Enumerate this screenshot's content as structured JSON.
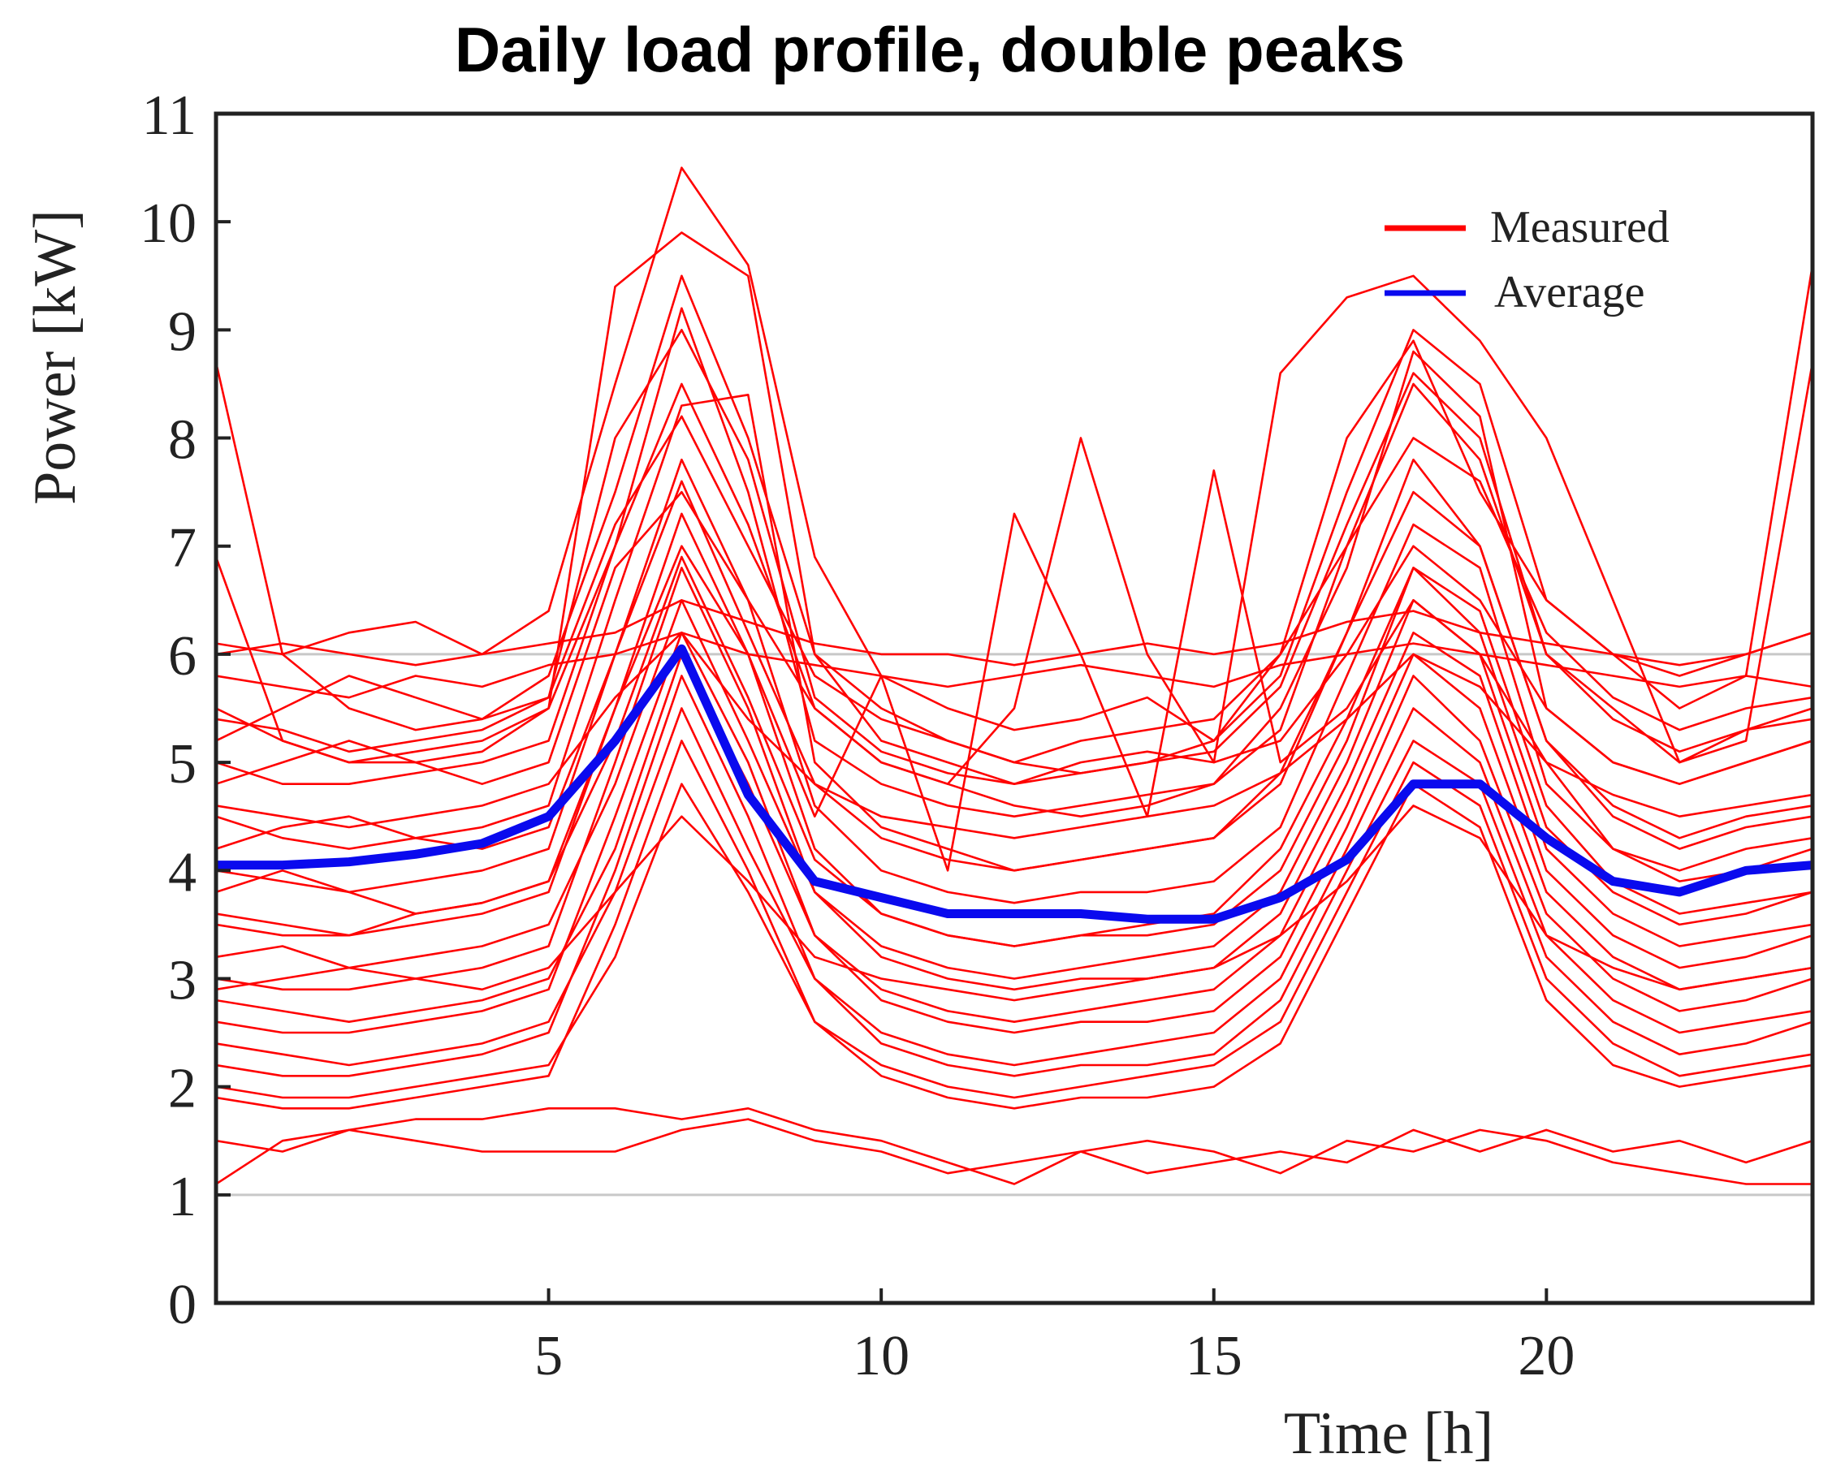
{
  "chart_data": {
    "type": "line",
    "title": "Daily load profile, double peaks",
    "xlabel": "Time [h]",
    "ylabel": "Power [kW]",
    "xlim": [
      0,
      24
    ],
    "ylim": [
      0,
      11
    ],
    "xticks": [
      5,
      10,
      15,
      20
    ],
    "yticks": [
      0,
      1,
      2,
      3,
      4,
      5,
      6,
      7,
      8,
      9,
      10,
      11
    ],
    "grid": false,
    "legend_position": "top-right",
    "colors": {
      "measured": "#ff0000",
      "average": "#0a0aee",
      "reference_lines": "#c8c8c8",
      "axes": "#222222"
    },
    "reference_lines_y": [
      1,
      6
    ],
    "x": [
      0,
      1,
      2,
      3,
      4,
      5,
      6,
      7,
      8,
      9,
      10,
      11,
      12,
      13,
      14,
      15,
      16,
      17,
      18,
      19,
      20,
      21,
      22,
      23,
      24
    ],
    "series": [
      {
        "name": "Average",
        "values": [
          4.05,
          4.05,
          4.08,
          4.15,
          4.25,
          4.5,
          5.2,
          6.05,
          4.7,
          3.9,
          3.75,
          3.6,
          3.6,
          3.6,
          3.55,
          3.55,
          3.75,
          4.1,
          4.8,
          4.8,
          4.3,
          3.9,
          3.8,
          4.0,
          4.05
        ]
      },
      {
        "name": "Measured",
        "profiles": [
          [
            8.7,
            6.0,
            5.5,
            5.3,
            5.4,
            5.8,
            7.5,
            9.5,
            8.0,
            6.0,
            5.5,
            5.2,
            5.0,
            4.9,
            5.0,
            5.2,
            5.8,
            7.5,
            9.0,
            8.5,
            6.5,
            6.0,
            5.5,
            5.8,
            9.6
          ],
          [
            6.9,
            5.2,
            5.0,
            5.0,
            5.1,
            5.5,
            7.0,
            8.5,
            7.2,
            5.5,
            5.0,
            4.8,
            4.6,
            4.5,
            4.6,
            4.8,
            5.3,
            7.0,
            8.5,
            7.8,
            6.0,
            5.5,
            5.0,
            5.2,
            8.7
          ],
          [
            6.1,
            6.0,
            6.2,
            6.3,
            6.0,
            6.4,
            8.5,
            10.5,
            9.6,
            6.9,
            5.8,
            5.5,
            5.3,
            5.4,
            5.6,
            5.2,
            6.0,
            8.0,
            8.9,
            7.5,
            6.5,
            6.0,
            5.8,
            6.0,
            6.2
          ],
          [
            5.5,
            5.2,
            5.0,
            5.1,
            5.2,
            5.5,
            9.4,
            9.9,
            9.5,
            6.0,
            5.2,
            5.0,
            4.8,
            5.0,
            5.1,
            5.0,
            8.6,
            9.3,
            9.5,
            8.9,
            8.0,
            6.5,
            5.0,
            5.3,
            5.5
          ],
          [
            5.0,
            4.8,
            4.8,
            4.9,
            5.0,
            5.2,
            7.0,
            9.2,
            7.5,
            5.2,
            4.8,
            4.6,
            4.5,
            4.6,
            4.7,
            4.8,
            5.5,
            6.8,
            8.8,
            8.2,
            5.5,
            5.0,
            4.8,
            5.0,
            5.2
          ],
          [
            4.5,
            4.3,
            4.2,
            4.3,
            4.4,
            4.6,
            6.5,
            8.3,
            8.4,
            5.0,
            4.4,
            4.2,
            4.0,
            4.1,
            4.2,
            4.3,
            4.8,
            6.2,
            7.8,
            7.0,
            5.2,
            4.6,
            4.3,
            4.5,
            4.6
          ],
          [
            4.0,
            3.9,
            3.8,
            3.9,
            4.0,
            4.2,
            6.0,
            7.8,
            6.5,
            4.6,
            4.0,
            3.8,
            3.7,
            3.8,
            3.8,
            3.9,
            4.4,
            5.8,
            7.2,
            6.8,
            4.8,
            4.2,
            3.9,
            4.0,
            4.2
          ],
          [
            3.5,
            3.4,
            3.4,
            3.5,
            3.6,
            3.8,
            5.5,
            7.3,
            6.0,
            4.2,
            3.6,
            3.4,
            3.3,
            3.4,
            3.4,
            3.5,
            4.0,
            5.2,
            6.8,
            6.2,
            4.4,
            3.8,
            3.5,
            3.6,
            3.8
          ],
          [
            3.0,
            2.9,
            2.9,
            3.0,
            3.1,
            3.3,
            5.0,
            6.8,
            5.5,
            3.8,
            3.2,
            3.0,
            2.9,
            3.0,
            3.0,
            3.1,
            3.6,
            4.8,
            6.2,
            5.8,
            4.0,
            3.4,
            3.1,
            3.2,
            3.4
          ],
          [
            2.6,
            2.5,
            2.5,
            2.6,
            2.7,
            2.9,
            4.5,
            6.2,
            5.0,
            3.4,
            2.8,
            2.6,
            2.5,
            2.6,
            2.6,
            2.7,
            3.2,
            4.4,
            5.8,
            5.2,
            3.6,
            3.0,
            2.7,
            2.8,
            3.0
          ],
          [
            2.2,
            2.1,
            2.1,
            2.2,
            2.3,
            2.5,
            4.0,
            5.8,
            4.5,
            3.0,
            2.4,
            2.2,
            2.1,
            2.2,
            2.2,
            2.3,
            2.8,
            4.0,
            5.2,
            4.8,
            3.2,
            2.6,
            2.3,
            2.4,
            2.6
          ],
          [
            1.9,
            1.8,
            1.8,
            1.9,
            2.0,
            2.1,
            3.5,
            5.2,
            4.0,
            2.6,
            2.1,
            1.9,
            1.8,
            1.9,
            1.9,
            2.0,
            2.4,
            3.6,
            4.8,
            4.4,
            2.8,
            2.2,
            2.0,
            2.1,
            2.2
          ],
          [
            1.1,
            1.5,
            1.6,
            1.7,
            1.7,
            1.8,
            1.8,
            1.7,
            1.8,
            1.6,
            1.5,
            1.3,
            1.1,
            1.4,
            1.5,
            1.4,
            1.2,
            1.5,
            1.4,
            1.6,
            1.5,
            1.3,
            1.2,
            1.1,
            1.1
          ],
          [
            1.5,
            1.4,
            1.6,
            1.5,
            1.4,
            1.4,
            1.4,
            1.6,
            1.7,
            1.5,
            1.4,
            1.2,
            1.3,
            1.4,
            1.2,
            1.3,
            1.4,
            1.3,
            1.6,
            1.4,
            1.6,
            1.4,
            1.5,
            1.3,
            1.5
          ],
          [
            5.8,
            5.7,
            5.6,
            5.8,
            5.7,
            5.9,
            6.0,
            6.2,
            6.0,
            5.9,
            5.8,
            5.7,
            5.8,
            5.9,
            5.8,
            5.7,
            5.9,
            6.0,
            6.1,
            6.0,
            5.9,
            5.8,
            5.7,
            5.8,
            5.7
          ],
          [
            6.0,
            6.1,
            6.0,
            5.9,
            6.0,
            6.1,
            6.2,
            6.5,
            6.3,
            6.1,
            6.0,
            6.0,
            5.9,
            6.0,
            6.1,
            6.0,
            6.1,
            6.3,
            6.4,
            6.2,
            6.1,
            6.0,
            5.9,
            6.0,
            6.2
          ],
          [
            4.8,
            5.0,
            5.2,
            5.0,
            4.8,
            5.0,
            6.8,
            7.5,
            6.5,
            5.5,
            5.0,
            4.8,
            5.5,
            8.0,
            6.0,
            5.0,
            5.2,
            6.0,
            7.0,
            6.5,
            5.5,
            5.0,
            4.8,
            5.0,
            5.2
          ],
          [
            3.8,
            4.0,
            3.8,
            3.6,
            3.7,
            3.9,
            5.5,
            7.0,
            6.0,
            4.5,
            5.8,
            4.0,
            7.3,
            6.0,
            4.5,
            7.7,
            5.0,
            5.5,
            6.5,
            6.0,
            5.0,
            4.2,
            4.0,
            4.2,
            4.3
          ],
          [
            3.2,
            3.3,
            3.1,
            3.2,
            3.3,
            3.5,
            4.8,
            6.5,
            5.2,
            3.8,
            3.3,
            3.1,
            3.0,
            3.1,
            3.2,
            3.3,
            3.8,
            5.0,
            6.5,
            6.0,
            4.2,
            3.6,
            3.3,
            3.4,
            3.5
          ],
          [
            2.8,
            2.7,
            2.6,
            2.7,
            2.8,
            3.0,
            4.2,
            6.0,
            4.8,
            3.4,
            2.9,
            2.7,
            2.6,
            2.7,
            2.8,
            2.9,
            3.4,
            4.6,
            6.0,
            5.5,
            3.8,
            3.2,
            2.9,
            3.0,
            3.1
          ],
          [
            2.4,
            2.3,
            2.2,
            2.3,
            2.4,
            2.6,
            3.8,
            5.5,
            4.2,
            3.0,
            2.5,
            2.3,
            2.2,
            2.3,
            2.4,
            2.5,
            3.0,
            4.2,
            5.5,
            5.0,
            3.4,
            2.8,
            2.5,
            2.6,
            2.7
          ],
          [
            2.0,
            1.9,
            1.9,
            2.0,
            2.1,
            2.2,
            3.2,
            4.8,
            3.8,
            2.6,
            2.2,
            2.0,
            1.9,
            2.0,
            2.1,
            2.2,
            2.6,
            3.8,
            5.0,
            4.6,
            3.0,
            2.4,
            2.1,
            2.2,
            2.3
          ],
          [
            5.2,
            5.5,
            5.8,
            5.6,
            5.4,
            5.6,
            7.2,
            8.2,
            7.0,
            5.8,
            5.4,
            5.2,
            5.0,
            5.2,
            5.3,
            5.4,
            6.0,
            7.0,
            8.0,
            7.6,
            6.2,
            5.6,
            5.3,
            5.5,
            5.6
          ],
          [
            4.2,
            4.4,
            4.5,
            4.3,
            4.2,
            4.4,
            6.0,
            7.6,
            6.2,
            4.8,
            4.3,
            4.1,
            4.0,
            4.1,
            4.2,
            4.3,
            4.9,
            6.2,
            7.5,
            7.0,
            5.2,
            4.5,
            4.2,
            4.4,
            4.5
          ],
          [
            3.6,
            3.5,
            3.4,
            3.6,
            3.7,
            3.9,
            5.2,
            6.9,
            5.6,
            4.1,
            3.6,
            3.4,
            3.3,
            3.4,
            3.5,
            3.6,
            4.2,
            5.4,
            6.8,
            6.4,
            4.6,
            3.9,
            3.6,
            3.7,
            3.8
          ],
          [
            4.6,
            4.5,
            4.4,
            4.5,
            4.6,
            4.8,
            5.6,
            6.2,
            5.4,
            4.8,
            4.5,
            4.4,
            4.3,
            4.4,
            4.5,
            4.6,
            4.9,
            5.4,
            6.0,
            5.7,
            5.0,
            4.7,
            4.5,
            4.6,
            4.7
          ],
          [
            2.9,
            3.0,
            3.1,
            3.0,
            2.9,
            3.1,
            3.8,
            4.5,
            3.9,
            3.2,
            3.0,
            2.9,
            2.8,
            2.9,
            3.0,
            3.1,
            3.4,
            3.9,
            4.6,
            4.3,
            3.4,
            3.1,
            2.9,
            3.0,
            3.1
          ],
          [
            5.4,
            5.3,
            5.1,
            5.2,
            5.3,
            5.6,
            8.0,
            9.0,
            7.8,
            5.6,
            5.1,
            4.9,
            4.8,
            4.9,
            5.0,
            5.1,
            5.7,
            7.2,
            8.6,
            8.0,
            6.0,
            5.4,
            5.1,
            5.3,
            5.4
          ]
        ]
      }
    ],
    "legend": [
      {
        "label": "Measured",
        "color": "#ff0000"
      },
      {
        "label": "Average",
        "color": "#0a0aee"
      }
    ]
  }
}
